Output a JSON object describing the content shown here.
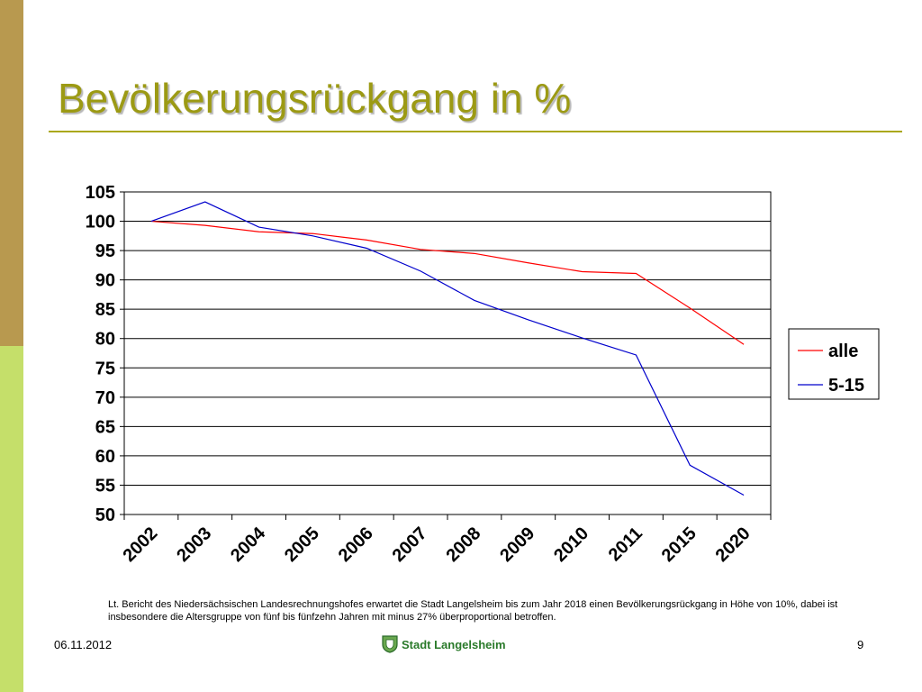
{
  "title": "Bevölkerungsrückgang in %",
  "caption": "Lt. Bericht des Niedersächsischen Landesrechnungshofes erwartet die Stadt Langelsheim bis zum Jahr 2018 einen Bevölkerungsrückgang in Höhe von 10%, dabei ist insbesondere die Altersgruppe von fünf bis fünfzehn Jahren mit minus 27% überproportional betroffen.",
  "footer": {
    "date": "06.11.2012",
    "brand": "Stadt Langelsheim",
    "page": "9",
    "brand_icon": "coat-of-arms-icon"
  },
  "chart_data": {
    "type": "line",
    "categories": [
      "2002",
      "2003",
      "2004",
      "2005",
      "2006",
      "2007",
      "2008",
      "2009",
      "2010",
      "2011",
      "2015",
      "2020"
    ],
    "series": [
      {
        "name": "alle",
        "color": "#ff0000",
        "values": [
          100,
          99.3,
          98.2,
          97.9,
          96.8,
          95.2,
          94.5,
          92.9,
          91.4,
          91.1,
          85.2,
          79.0
        ]
      },
      {
        "name": "5-15",
        "color": "#0000cc",
        "values": [
          100,
          103.3,
          99.0,
          97.5,
          95.4,
          91.5,
          86.5,
          83.2,
          80.1,
          77.2,
          58.4,
          53.3
        ]
      }
    ],
    "ylim": [
      50,
      105
    ],
    "yticks": [
      "50",
      "55",
      "60",
      "65",
      "70",
      "75",
      "80",
      "85",
      "90",
      "95",
      "100",
      "105"
    ],
    "grid": true,
    "legend_position": "right"
  }
}
